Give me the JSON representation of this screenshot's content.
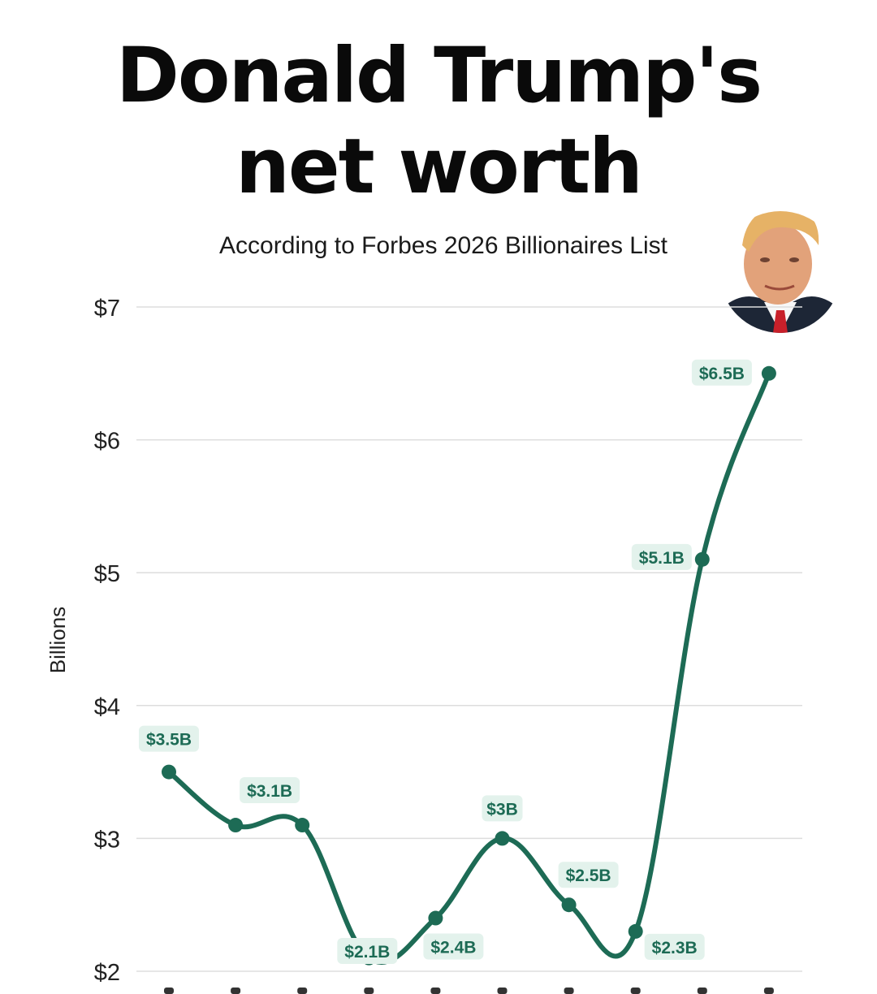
{
  "title_line1": "Donald Trump's",
  "title_line2": "net worth",
  "subtitle": "According to Forbes 2026 Billionaires List",
  "colors": {
    "line": "#1d6b55",
    "label_bg": "#e3f2ec",
    "grid": "#dddddd"
  },
  "chart_data": {
    "type": "line",
    "title": "Donald Trump's net worth",
    "subtitle": "According to Forbes 2026 Billionaires List",
    "ylabel": "Billions",
    "ylim": [
      2,
      7
    ],
    "yticks": [
      2,
      3,
      4,
      5,
      6,
      7
    ],
    "ytick_labels": [
      "$2",
      "$3",
      "$4",
      "$5",
      "$6",
      "$7"
    ],
    "grid": true,
    "series": [
      {
        "values": [
          3.5,
          3.1,
          3.1,
          2.1,
          2.4,
          3.0,
          2.5,
          2.3,
          5.1,
          6.5
        ],
        "labels": [
          "$3.5B",
          "$3.1B",
          "",
          "$2.1B",
          "$2.4B",
          "$3B",
          "$2.5B",
          "$2.3B",
          "$5.1B",
          "$6.5B"
        ]
      }
    ]
  }
}
